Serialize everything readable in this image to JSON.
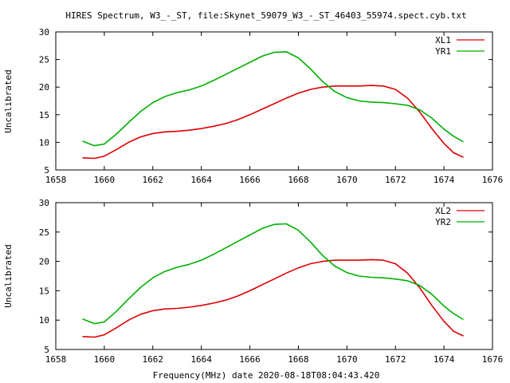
{
  "title": "HIRES Spectrum, W3_-_ST, file:Skynet_59079_W3_-_ST_46403_55974.spect.cyb.txt",
  "xlabel": "Frequency(MHz) date 2020-08-18T08:04:43.420",
  "colors": {
    "XL": "#dd0000",
    "YR": "#00b000",
    "axis": "#000000"
  },
  "chart_data": [
    {
      "type": "line",
      "xlim": [
        1658,
        1676
      ],
      "ylim": [
        5,
        30
      ],
      "xticks": [
        1658,
        1660,
        1662,
        1664,
        1666,
        1668,
        1670,
        1672,
        1674,
        1676
      ],
      "yticks": [
        5,
        10,
        15,
        20,
        25,
        30
      ],
      "ylabel": "Uncalibrated",
      "legend_position": "top-right",
      "series": [
        {
          "name": "XL1",
          "color": "#dd0000",
          "x": [
            1659.1,
            1659.6,
            1660.0,
            1660.5,
            1661.0,
            1661.5,
            1662.0,
            1662.5,
            1663.0,
            1663.5,
            1664.0,
            1664.5,
            1665.0,
            1665.5,
            1666.0,
            1666.5,
            1667.0,
            1667.5,
            1668.0,
            1668.5,
            1669.0,
            1669.5,
            1670.0,
            1670.5,
            1671.0,
            1671.5,
            1672.0,
            1672.5,
            1673.0,
            1673.5,
            1674.0,
            1674.4,
            1674.8
          ],
          "values": [
            7.2,
            7.1,
            7.5,
            8.7,
            10.0,
            11.0,
            11.6,
            11.9,
            12.0,
            12.2,
            12.5,
            12.9,
            13.4,
            14.1,
            15.0,
            16.0,
            17.0,
            18.0,
            18.9,
            19.6,
            20.0,
            20.2,
            20.2,
            20.2,
            20.3,
            20.2,
            19.6,
            18.0,
            15.5,
            12.5,
            9.8,
            8.1,
            7.3
          ]
        },
        {
          "name": "YR1",
          "color": "#00b000",
          "x": [
            1659.1,
            1659.6,
            1660.0,
            1660.5,
            1661.0,
            1661.5,
            1662.0,
            1662.5,
            1663.0,
            1663.5,
            1664.0,
            1664.5,
            1665.0,
            1665.5,
            1666.0,
            1666.5,
            1667.0,
            1667.5,
            1668.0,
            1668.5,
            1669.0,
            1669.5,
            1670.0,
            1670.5,
            1671.0,
            1671.5,
            1672.0,
            1672.5,
            1673.0,
            1673.5,
            1674.0,
            1674.4,
            1674.8
          ],
          "values": [
            10.2,
            9.4,
            9.7,
            11.5,
            13.6,
            15.6,
            17.2,
            18.3,
            19.0,
            19.5,
            20.2,
            21.2,
            22.3,
            23.4,
            24.5,
            25.6,
            26.3,
            26.4,
            25.3,
            23.3,
            21.0,
            19.2,
            18.1,
            17.5,
            17.3,
            17.2,
            17.0,
            16.7,
            15.9,
            14.4,
            12.4,
            11.1,
            10.1
          ]
        }
      ]
    },
    {
      "type": "line",
      "xlim": [
        1658,
        1676
      ],
      "ylim": [
        5,
        30
      ],
      "xticks": [
        1658,
        1660,
        1662,
        1664,
        1666,
        1668,
        1670,
        1672,
        1674,
        1676
      ],
      "yticks": [
        5,
        10,
        15,
        20,
        25,
        30
      ],
      "ylabel": "Uncalibrated",
      "legend_position": "top-right",
      "series": [
        {
          "name": "XL2",
          "color": "#dd0000",
          "x": [
            1659.1,
            1659.6,
            1660.0,
            1660.5,
            1661.0,
            1661.5,
            1662.0,
            1662.5,
            1663.0,
            1663.5,
            1664.0,
            1664.5,
            1665.0,
            1665.5,
            1666.0,
            1666.5,
            1667.0,
            1667.5,
            1668.0,
            1668.5,
            1669.0,
            1669.5,
            1670.0,
            1670.5,
            1671.0,
            1671.5,
            1672.0,
            1672.5,
            1673.0,
            1673.5,
            1674.0,
            1674.4,
            1674.8
          ],
          "values": [
            7.2,
            7.1,
            7.5,
            8.7,
            10.0,
            11.0,
            11.6,
            11.9,
            12.0,
            12.2,
            12.5,
            12.9,
            13.4,
            14.1,
            15.0,
            16.0,
            17.0,
            18.0,
            18.9,
            19.6,
            20.0,
            20.2,
            20.2,
            20.2,
            20.3,
            20.2,
            19.6,
            18.0,
            15.5,
            12.5,
            9.8,
            8.1,
            7.3
          ]
        },
        {
          "name": "YR2",
          "color": "#00b000",
          "x": [
            1659.1,
            1659.6,
            1660.0,
            1660.5,
            1661.0,
            1661.5,
            1662.0,
            1662.5,
            1663.0,
            1663.5,
            1664.0,
            1664.5,
            1665.0,
            1665.5,
            1666.0,
            1666.5,
            1667.0,
            1667.5,
            1668.0,
            1668.5,
            1669.0,
            1669.5,
            1670.0,
            1670.5,
            1671.0,
            1671.5,
            1672.0,
            1672.5,
            1673.0,
            1673.5,
            1674.0,
            1674.4,
            1674.8
          ],
          "values": [
            10.2,
            9.4,
            9.7,
            11.5,
            13.6,
            15.6,
            17.2,
            18.3,
            19.0,
            19.5,
            20.2,
            21.2,
            22.3,
            23.4,
            24.5,
            25.6,
            26.3,
            26.4,
            25.3,
            23.3,
            21.0,
            19.2,
            18.1,
            17.5,
            17.3,
            17.2,
            17.0,
            16.7,
            15.9,
            14.4,
            12.4,
            11.1,
            10.1
          ]
        }
      ]
    }
  ]
}
